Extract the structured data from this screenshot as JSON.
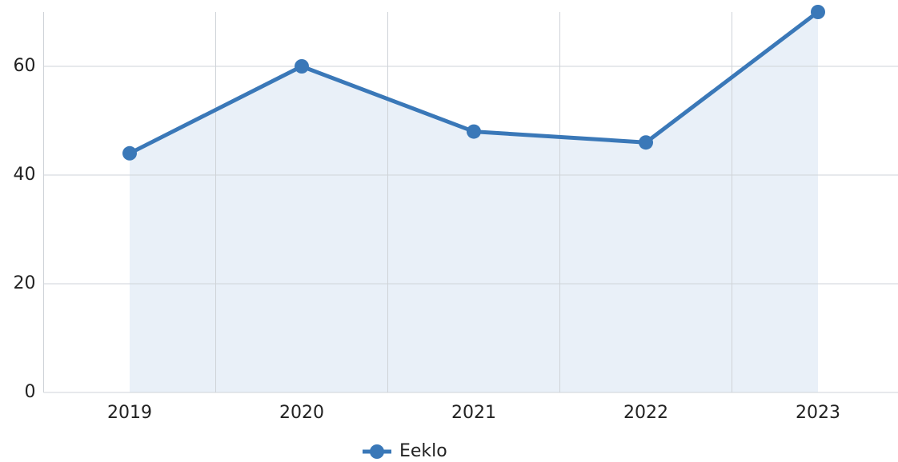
{
  "chart_data": {
    "type": "line",
    "categories": [
      "2019",
      "2020",
      "2021",
      "2022",
      "2023"
    ],
    "series": [
      {
        "name": "Eeklo",
        "color": "#3a78b8",
        "values": [
          44,
          60,
          48,
          46,
          70
        ]
      }
    ],
    "area": true,
    "area_color": "#e9f0f8",
    "ylim": [
      0,
      70
    ],
    "yticks": [
      0,
      20,
      40,
      60
    ],
    "grid": true,
    "legend": "bottom"
  }
}
